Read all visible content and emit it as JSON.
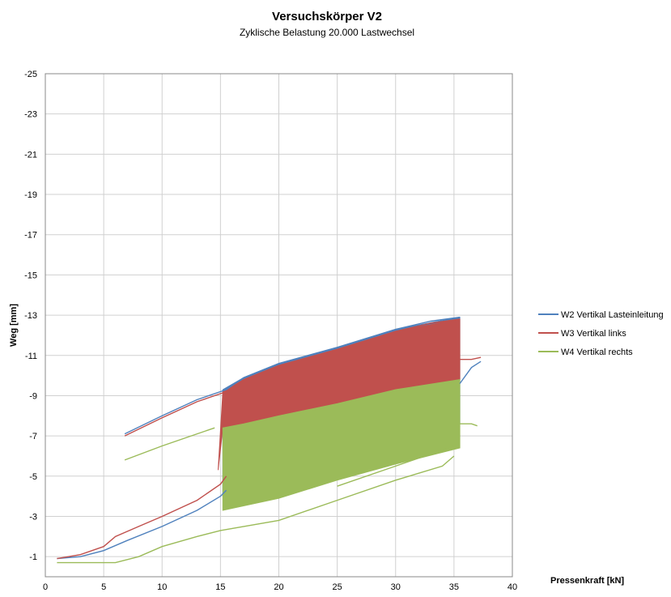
{
  "chart_data": {
    "type": "line",
    "title": "Versuchskörper V2",
    "subtitle": "Zyklische Belastung 20.000 Lastwechsel",
    "xlabel": "Pressenkraft [kN]",
    "ylabel": "Weg [mm]",
    "xlim": [
      0,
      40
    ],
    "ylim": [
      -25,
      0
    ],
    "y_axis_reversed": true,
    "x_ticks": [
      "0",
      "5",
      "10",
      "15",
      "20",
      "25",
      "30",
      "35",
      "40"
    ],
    "y_ticks": [
      "-25",
      "-23",
      "-21",
      "-19",
      "-17",
      "-15",
      "-13",
      "-11",
      "-9",
      "-7",
      "-5",
      "-3",
      "-1"
    ],
    "grid": true,
    "legend_position": "right",
    "series": [
      {
        "name": "W2 Vertikal Lasteinleitung",
        "color": "#4f81bd",
        "lines": [
          [
            [
              1,
              -0.9
            ],
            [
              3,
              -1.0
            ],
            [
              5,
              -1.3
            ],
            [
              7,
              -1.8
            ],
            [
              10,
              -2.5
            ],
            [
              13,
              -3.3
            ],
            [
              15,
              -4.0
            ],
            [
              15.5,
              -4.3
            ]
          ],
          [
            [
              6.8,
              -7.1
            ],
            [
              10,
              -8.0
            ],
            [
              13,
              -8.8
            ],
            [
              15.5,
              -9.3
            ],
            [
              17,
              -9.9
            ],
            [
              20,
              -10.6
            ],
            [
              25,
              -11.4
            ],
            [
              30,
              -12.3
            ],
            [
              33,
              -12.7
            ],
            [
              35.5,
              -12.9
            ]
          ],
          [
            [
              35.5,
              -9.6
            ],
            [
              36.5,
              -10.4
            ],
            [
              37.3,
              -10.7
            ]
          ]
        ],
        "band": {
          "x_start": 15.2,
          "x_end": 35.5,
          "lower": [
            [
              15.2,
              -4.0
            ],
            [
              20,
              -5.0
            ],
            [
              25,
              -6.0
            ],
            [
              30,
              -6.9
            ],
            [
              35.5,
              -7.6
            ]
          ],
          "upper": [
            [
              15.2,
              -9.3
            ],
            [
              17,
              -9.9
            ],
            [
              20,
              -10.6
            ],
            [
              25,
              -11.4
            ],
            [
              30,
              -12.3
            ],
            [
              35.5,
              -12.9
            ]
          ]
        }
      },
      {
        "name": "W3 Vertikal links",
        "color": "#c0504d",
        "lines": [
          [
            [
              1,
              -0.9
            ],
            [
              3,
              -1.1
            ],
            [
              5,
              -1.5
            ],
            [
              6,
              -2.0
            ],
            [
              8,
              -2.5
            ],
            [
              10,
              -3.0
            ],
            [
              13,
              -3.8
            ],
            [
              15,
              -4.6
            ],
            [
              15.5,
              -5.0
            ]
          ],
          [
            [
              6.8,
              -7.0
            ],
            [
              10,
              -7.9
            ],
            [
              13,
              -8.7
            ],
            [
              15.5,
              -9.2
            ],
            [
              17,
              -9.8
            ],
            [
              20,
              -10.5
            ],
            [
              25,
              -11.3
            ],
            [
              30,
              -12.2
            ],
            [
              33,
              -12.6
            ],
            [
              35.5,
              -12.8
            ]
          ],
          [
            [
              35.5,
              -10.8
            ],
            [
              36.5,
              -10.8
            ],
            [
              37.3,
              -10.9
            ]
          ]
        ],
        "band": {
          "x_start": 15.2,
          "x_end": 35.5,
          "lower": [
            [
              14.8,
              -5.3
            ],
            [
              15.2,
              -7.4
            ],
            [
              17,
              -7.6
            ],
            [
              20,
              -8.0
            ],
            [
              25,
              -8.6
            ],
            [
              30,
              -9.3
            ],
            [
              35.5,
              -9.8
            ]
          ],
          "upper": [
            [
              15.2,
              -9.2
            ],
            [
              17,
              -9.8
            ],
            [
              20,
              -10.5
            ],
            [
              25,
              -11.3
            ],
            [
              30,
              -12.2
            ],
            [
              35.5,
              -12.8
            ]
          ]
        }
      },
      {
        "name": "W4 Vertikal rechts",
        "color": "#9bbb59",
        "lines": [
          [
            [
              1,
              -0.7
            ],
            [
              3,
              -0.7
            ],
            [
              6,
              -0.7
            ],
            [
              8,
              -1.0
            ],
            [
              10,
              -1.5
            ],
            [
              13,
              -2.0
            ],
            [
              15,
              -2.3
            ],
            [
              20,
              -2.8
            ],
            [
              25,
              -3.8
            ],
            [
              30,
              -4.8
            ],
            [
              34,
              -5.5
            ],
            [
              35,
              -6.0
            ]
          ],
          [
            [
              6.8,
              -5.8
            ],
            [
              10,
              -6.5
            ],
            [
              13,
              -7.1
            ],
            [
              14.5,
              -7.4
            ]
          ],
          [
            [
              35.5,
              -7.6
            ],
            [
              36.5,
              -7.6
            ],
            [
              37,
              -7.5
            ]
          ],
          [
            [
              25,
              -4.5
            ],
            [
              30,
              -5.5
            ],
            [
              35,
              -6.5
            ]
          ]
        ],
        "band": {
          "x_start": 15.2,
          "x_end": 35.5,
          "lower": [
            [
              15.2,
              -3.3
            ],
            [
              20,
              -3.9
            ],
            [
              25,
              -4.8
            ],
            [
              30,
              -5.6
            ],
            [
              35.5,
              -6.4
            ]
          ],
          "upper": [
            [
              15.2,
              -7.4
            ],
            [
              17,
              -7.6
            ],
            [
              20,
              -8.0
            ],
            [
              25,
              -8.6
            ],
            [
              30,
              -9.3
            ],
            [
              35.5,
              -9.8
            ]
          ]
        }
      }
    ]
  }
}
